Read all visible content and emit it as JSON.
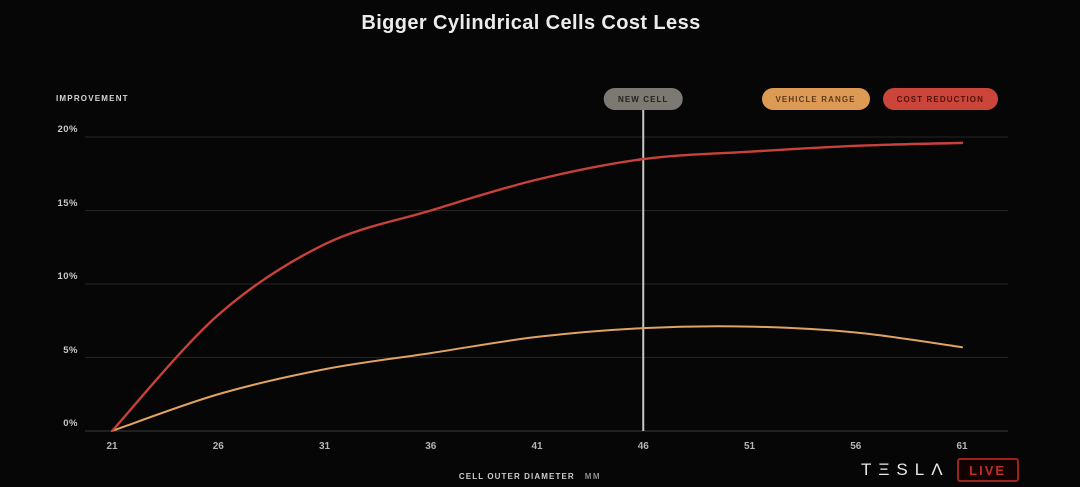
{
  "title": "Bigger Cylindrical Cells Cost Less",
  "y_axis_title": "IMPROVEMENT",
  "x_axis_title": "CELL OUTER DIAMETER",
  "x_axis_unit": "MM",
  "annotation": {
    "label": "NEW CELL",
    "x": 46,
    "pill_color": "#7b7972",
    "line_color": "#c6c6c6"
  },
  "legend": [
    {
      "label": "VEHICLE RANGE",
      "color": "#dc9a55",
      "text_color": "#5d3a1d"
    },
    {
      "label": "COST REDUCTION",
      "color": "#cb453a",
      "text_color": "#4e120c"
    }
  ],
  "branding": {
    "brand": "TESLA",
    "wordmark_glyphs": "TΞSLΛ",
    "live_label": "LIVE",
    "live_color": "#bc2f25"
  },
  "chart_data": {
    "type": "line",
    "x": [
      21,
      26,
      31,
      36,
      41,
      46,
      51,
      56,
      61
    ],
    "series": [
      {
        "name": "VEHICLE RANGE",
        "color": "#e0a361",
        "width": 2,
        "values": [
          0,
          2.5,
          4.2,
          5.3,
          6.4,
          7.0,
          7.1,
          6.7,
          5.7
        ]
      },
      {
        "name": "COST REDUCTION",
        "color": "#c8413a",
        "width": 2.4,
        "values": [
          0,
          7.9,
          12.7,
          15.0,
          17.1,
          18.5,
          19.0,
          19.4,
          19.6
        ]
      }
    ],
    "yticks": [
      0,
      5,
      10,
      15,
      20
    ],
    "ytick_suffix": "%",
    "xlim": [
      21,
      61
    ],
    "ylim": [
      0,
      20
    ],
    "grid": true,
    "legend_position": "top-right",
    "annotation_x": 46,
    "title": "Bigger Cylindrical Cells Cost Less",
    "xlabel": "CELL OUTER DIAMETER MM",
    "ylabel": "IMPROVEMENT"
  }
}
